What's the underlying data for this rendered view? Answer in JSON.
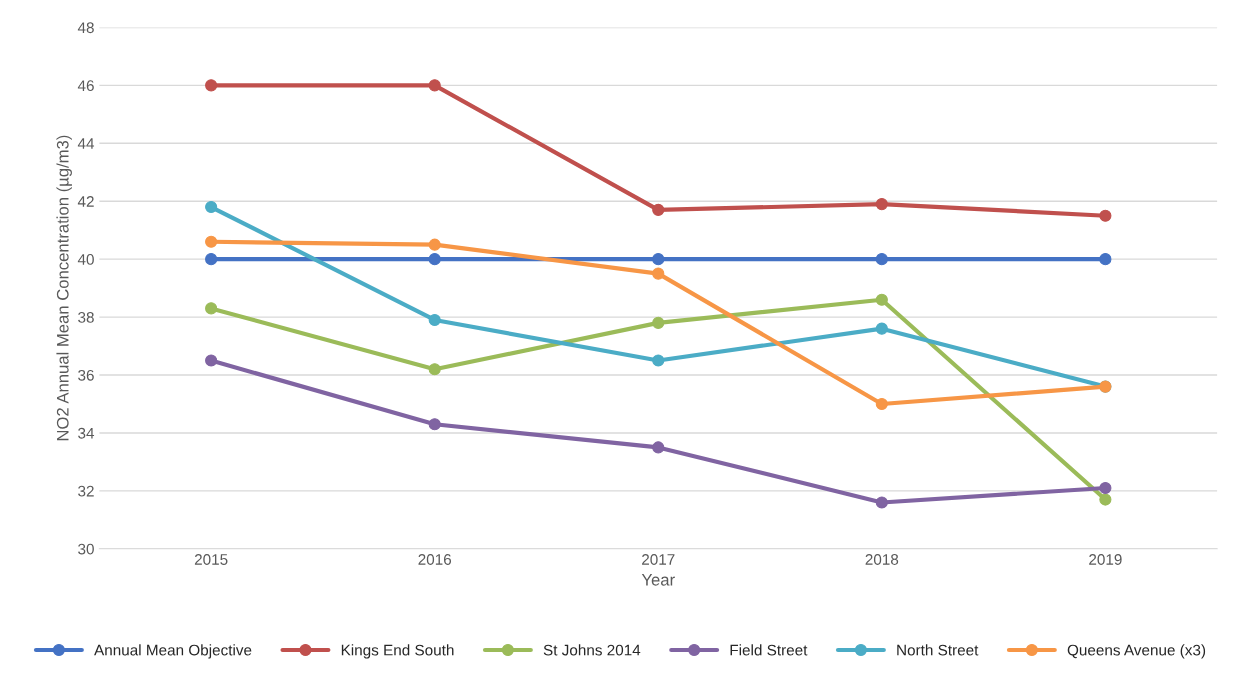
{
  "chart_data": {
    "type": "line",
    "xlabel": "Year",
    "ylabel": "NO2 Annual Mean Concentration (µg/m3)",
    "categories": [
      "2015",
      "2016",
      "2017",
      "2018",
      "2019"
    ],
    "series": [
      {
        "name": "Annual Mean Objective",
        "color": "#4472c4",
        "values": [
          40,
          40,
          40,
          40,
          40
        ]
      },
      {
        "name": "Kings End South",
        "color": "#c0504d",
        "values": [
          46,
          46,
          41.7,
          41.9,
          41.5
        ]
      },
      {
        "name": "St Johns 2014",
        "color": "#9bbb59",
        "values": [
          38.3,
          36.2,
          37.8,
          38.6,
          31.7
        ]
      },
      {
        "name": "Field Street",
        "color": "#8064a2",
        "values": [
          36.5,
          34.3,
          33.5,
          31.6,
          32.1
        ]
      },
      {
        "name": "North Street",
        "color": "#4bacc6",
        "values": [
          41.8,
          37.9,
          36.5,
          37.6,
          35.6
        ]
      },
      {
        "name": "Queens Avenue (x3)",
        "color": "#f79646",
        "values": [
          40.6,
          40.5,
          39.5,
          35.0,
          35.6
        ]
      }
    ],
    "ylim": [
      30,
      48
    ],
    "yticks": [
      30,
      32,
      34,
      36,
      38,
      40,
      42,
      44,
      46,
      48
    ],
    "grid": "y",
    "legend": "bottom",
    "marker": "circle",
    "line_style": "solid"
  }
}
